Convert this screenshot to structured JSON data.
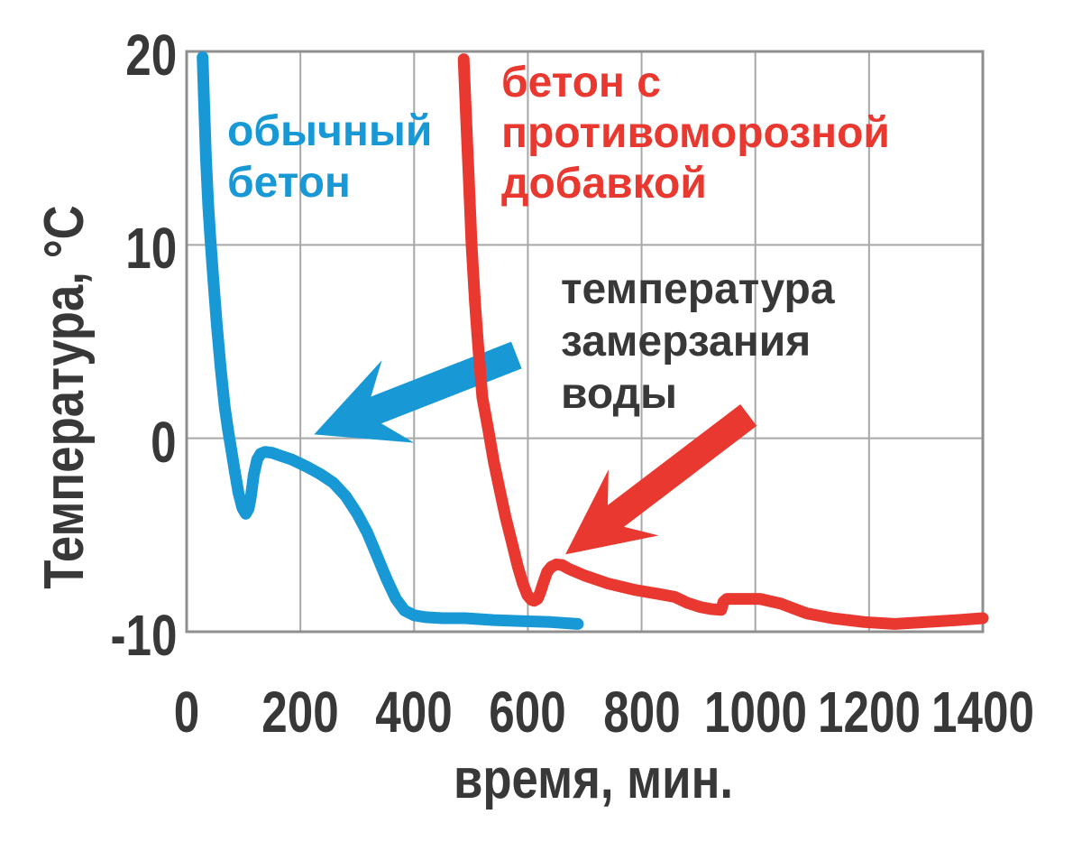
{
  "colors": {
    "blue": "#1899d6",
    "red": "#e93830",
    "text_dark": "#383838",
    "grid": "#a8a8a8",
    "border": "#8f8f8f",
    "background": "#ffffff"
  },
  "chart_data": {
    "type": "line",
    "title": "",
    "xlabel": "время, мин.",
    "ylabel": "Температура, °С",
    "xlim": [
      0,
      1400
    ],
    "ylim": [
      -10,
      20
    ],
    "grid": true,
    "x_ticks": [
      0,
      200,
      400,
      600,
      800,
      1000,
      1200,
      1400
    ],
    "x_tick_labels": [
      "0",
      "200",
      "400",
      "600",
      "800",
      "1000",
      "1200",
      "1400"
    ],
    "y_ticks": [
      20,
      10,
      0,
      -10
    ],
    "y_tick_labels": [
      "20",
      "10",
      "0",
      "-10"
    ],
    "series": [
      {
        "name": "обычный бетон",
        "color": "#1899d6",
        "points": [
          [
            28,
            19.7
          ],
          [
            31,
            17
          ],
          [
            34,
            14.5
          ],
          [
            38,
            12
          ],
          [
            42,
            10.2
          ],
          [
            47,
            8.2
          ],
          [
            53,
            5.9
          ],
          [
            60,
            3.6
          ],
          [
            67,
            1.6
          ],
          [
            73,
            0.4
          ],
          [
            78,
            -0.5
          ],
          [
            84,
            -1.6
          ],
          [
            91,
            -2.8
          ],
          [
            98,
            -3.6
          ],
          [
            104,
            -3.9
          ],
          [
            109,
            -3.65
          ],
          [
            113,
            -3
          ],
          [
            118,
            -1.9
          ],
          [
            124,
            -1.1
          ],
          [
            130,
            -0.8
          ],
          [
            138,
            -0.7
          ],
          [
            150,
            -0.75
          ],
          [
            165,
            -0.9
          ],
          [
            185,
            -1.1
          ],
          [
            210,
            -1.45
          ],
          [
            235,
            -1.85
          ],
          [
            258,
            -2.3
          ],
          [
            280,
            -3
          ],
          [
            300,
            -3.9
          ],
          [
            318,
            -4.9
          ],
          [
            335,
            -6.1
          ],
          [
            352,
            -7.3
          ],
          [
            368,
            -8.3
          ],
          [
            383,
            -8.9
          ],
          [
            400,
            -9.15
          ],
          [
            420,
            -9.25
          ],
          [
            450,
            -9.3
          ],
          [
            490,
            -9.3
          ],
          [
            540,
            -9.4
          ],
          [
            590,
            -9.45
          ],
          [
            640,
            -9.5
          ],
          [
            688,
            -9.6
          ]
        ]
      },
      {
        "name": "бетон с противоморозной добавкой",
        "color": "#e93830",
        "points": [
          [
            487,
            19.6
          ],
          [
            492,
            16.2
          ],
          [
            497,
            12.8
          ],
          [
            501,
            10
          ],
          [
            507,
            7
          ],
          [
            513,
            4.6
          ],
          [
            520,
            2.1
          ],
          [
            530,
            0.5
          ],
          [
            540,
            -1.2
          ],
          [
            550,
            -2.6
          ],
          [
            561,
            -4.1
          ],
          [
            572,
            -5.4
          ],
          [
            582,
            -6.6
          ],
          [
            591,
            -7.5
          ],
          [
            599,
            -8.1
          ],
          [
            606,
            -8.35
          ],
          [
            611,
            -8.4
          ],
          [
            617,
            -8.3
          ],
          [
            622,
            -7.95
          ],
          [
            628,
            -7.4
          ],
          [
            634,
            -6.9
          ],
          [
            641,
            -6.65
          ],
          [
            650,
            -6.52
          ],
          [
            660,
            -6.55
          ],
          [
            672,
            -6.75
          ],
          [
            700,
            -7.1
          ],
          [
            740,
            -7.5
          ],
          [
            790,
            -7.85
          ],
          [
            830,
            -8.05
          ],
          [
            858,
            -8.2
          ],
          [
            880,
            -8.5
          ],
          [
            903,
            -8.72
          ],
          [
            922,
            -8.83
          ],
          [
            940,
            -8.87
          ],
          [
            944,
            -8.45
          ],
          [
            950,
            -8.3
          ],
          [
            1008,
            -8.3
          ],
          [
            1045,
            -8.55
          ],
          [
            1090,
            -9.05
          ],
          [
            1135,
            -9.3
          ],
          [
            1192,
            -9.5
          ],
          [
            1245,
            -9.6
          ],
          [
            1300,
            -9.5
          ],
          [
            1355,
            -9.4
          ],
          [
            1400,
            -9.3
          ]
        ]
      }
    ],
    "annotations": {
      "series_labels": [
        {
          "text": "обычный\nбетон",
          "color": "#1899d6"
        },
        {
          "text": "бетон с\nпротивоморозной\nдобавкой",
          "color": "#e93830"
        }
      ],
      "note": {
        "text": "температура\nзамерзания\nводы",
        "color": "#383838"
      },
      "arrows": [
        {
          "name": "freezing-point-arrow-blue",
          "color": "#1899d6",
          "from_t": 580,
          "from_T": 4.3,
          "to_t": 224,
          "to_T": 0.2
        },
        {
          "name": "freezing-point-arrow-red",
          "color": "#e93830",
          "from_t": 988,
          "from_T": 1.2,
          "to_t": 666,
          "to_T": -6.0
        }
      ]
    }
  }
}
